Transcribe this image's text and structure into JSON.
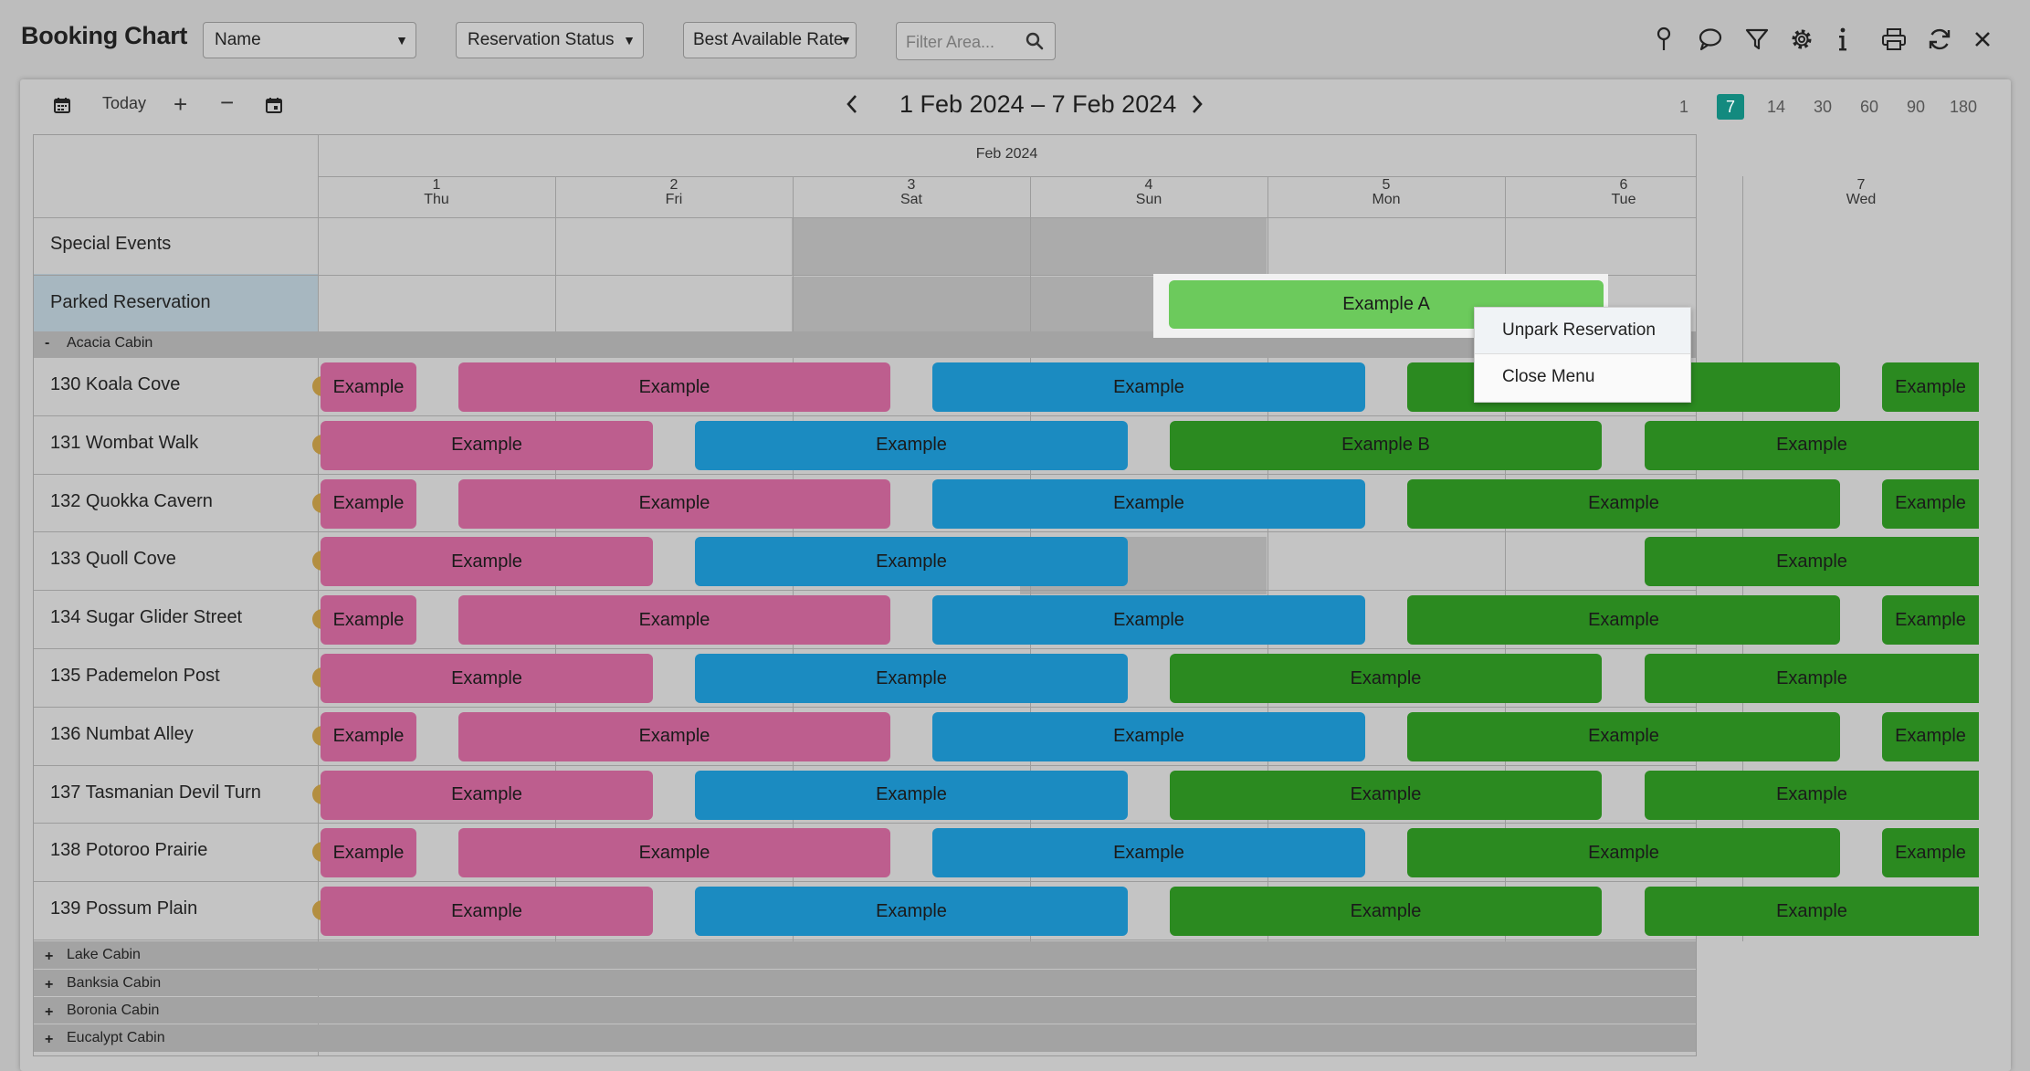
{
  "app": {
    "title": "Booking Chart"
  },
  "toolbar": {
    "group_by_select": "Name",
    "status_select": "Reservation Status",
    "rate_select": "Best Available Rate",
    "filter_placeholder": "Filter Area..."
  },
  "nav": {
    "today_label": "Today",
    "range_title": "1 Feb 2024 – 7 Feb 2024",
    "zoom_levels": [
      "1",
      "7",
      "14",
      "30",
      "60",
      "90",
      "180"
    ],
    "zoom_selected": "7"
  },
  "header": {
    "month": "Feb 2024",
    "days": [
      {
        "num": "1",
        "dow": "Thu"
      },
      {
        "num": "2",
        "dow": "Fri"
      },
      {
        "num": "3",
        "dow": "Sat"
      },
      {
        "num": "4",
        "dow": "Sun"
      },
      {
        "num": "5",
        "dow": "Mon"
      },
      {
        "num": "6",
        "dow": "Tue"
      },
      {
        "num": "7",
        "dow": "Wed"
      }
    ]
  },
  "special_rows": {
    "special_events": "Special Events",
    "parked": "Parked Reservation",
    "parked_booking": "Example A"
  },
  "groups": {
    "expanded": "Acacia Cabin",
    "expanded_sign": "-",
    "collapsed": [
      "Lake Cabin",
      "Banksia Cabin",
      "Boronia Cabin",
      "Eucalypt Cabin"
    ],
    "collapsed_sign": "+"
  },
  "rooms": [
    "130 Koala Cove",
    "131 Wombat Walk",
    "132 Quokka Cavern",
    "133 Quoll Cove",
    "134 Sugar Glider Street",
    "135 Pademelon Post",
    "136 Numbat Alley",
    "137 Tasmanian Devil Turn",
    "138 Potoroo Prairie",
    "139 Possum Plain"
  ],
  "bookings": {
    "default_label": "Example",
    "special_label": "Example B"
  },
  "context_menu": {
    "unpark": "Unpark Reservation",
    "close": "Close Menu"
  },
  "colors": {
    "pink": "#bd5e8e",
    "blue": "#1b8bc1",
    "green": "#2b8a20",
    "parked_green": "#6cca5c",
    "zoom_active": "#138a7f",
    "room_dot": "#b38e40"
  }
}
